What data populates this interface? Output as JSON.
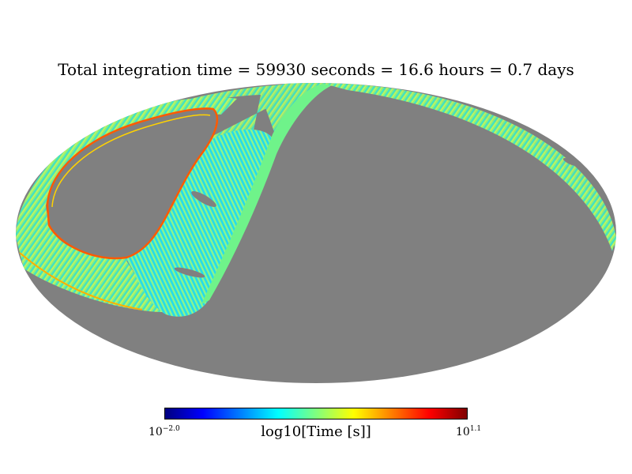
{
  "title": "Total integration time = 59930 seconds = 16.6 hours = 0.7 days",
  "map": {
    "projection": "mollweide",
    "background_color": "#808080",
    "colormap": "jet"
  },
  "colorbar": {
    "label": "log10[Time [s]]",
    "min_base": "10",
    "min_exp": "−2.0",
    "max_base": "10",
    "max_exp": "1.1",
    "colors": [
      "#00007f",
      "#0000ff",
      "#007fff",
      "#00ffff",
      "#7fff7f",
      "#ffff00",
      "#ff7f00",
      "#ff0000",
      "#7f0000"
    ]
  }
}
